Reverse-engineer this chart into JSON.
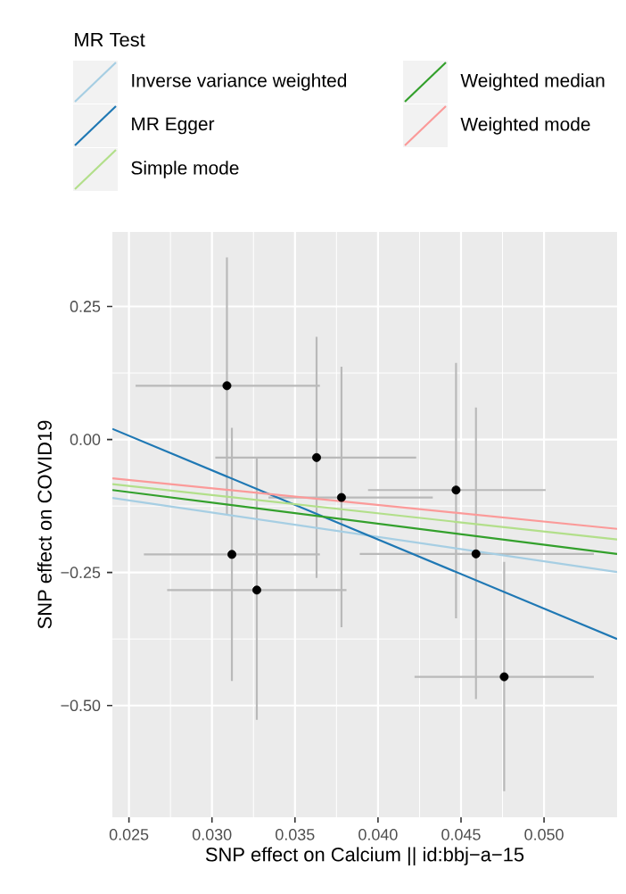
{
  "chart_data": {
    "type": "scatter",
    "xlabel": "SNP effect on Calcium || id:bbj−a−15",
    "ylabel": "SNP effect on COVID19",
    "legend_title": "MR Test",
    "legend": "top",
    "grid": true,
    "xlim": [
      0.024,
      0.0544
    ],
    "ylim": [
      -0.71,
      0.39
    ],
    "xticks": [
      0.025,
      {
        "value": 0.03,
        "label": "0.030"
      },
      0.035,
      {
        "value": 0.04,
        "label": "0.040"
      },
      0.045,
      {
        "value": 0.05,
        "label": "0.050"
      }
    ],
    "yticks": [
      {
        "value": -0.5,
        "label": "−0.50"
      },
      {
        "value": -0.25,
        "label": "−0.25"
      },
      {
        "value": 0,
        "label": "0.00"
      },
      {
        "value": 0.25,
        "label": "0.25"
      }
    ],
    "series": [
      {
        "marker": "circle",
        "color": "#000000",
        "x": [
          0.0309,
          0.0312,
          0.0327,
          0.0363,
          0.0378,
          0.0447,
          0.0459,
          0.0476
        ],
        "values": [
          0.101,
          -0.216,
          -0.283,
          -0.034,
          -0.109,
          -0.095,
          -0.215,
          -0.446
        ],
        "xerrors": [
          [
            0.0254,
            0.0365
          ],
          [
            0.0259,
            0.0365
          ],
          [
            0.0273,
            0.0381
          ],
          [
            0.0302,
            0.0423
          ],
          [
            0.0334,
            0.0433
          ],
          [
            0.0394,
            0.0501
          ],
          [
            0.0389,
            0.053
          ],
          [
            0.0422,
            0.053
          ]
        ],
        "errors": [
          [
            -0.14,
            0.342
          ],
          [
            -0.454,
            0.022
          ],
          [
            -0.527,
            -0.036
          ],
          [
            -0.26,
            0.193
          ],
          [
            -0.353,
            0.137
          ],
          [
            -0.336,
            0.144
          ],
          [
            -0.488,
            0.06
          ],
          [
            -0.661,
            -0.23
          ]
        ]
      },
      {
        "type": "line",
        "name": "Inverse variance weighted",
        "color": "#a6cee3",
        "x": [
          0.024,
          0.0544
        ],
        "values": [
          -0.11,
          -0.249
        ]
      },
      {
        "type": "line",
        "name": "MR Egger",
        "color": "#1f78b4",
        "x": [
          0.024,
          0.0544
        ],
        "values": [
          0.02,
          -0.375
        ]
      },
      {
        "type": "line",
        "name": "Simple mode",
        "color": "#b2df8a",
        "x": [
          0.024,
          0.0544
        ],
        "values": [
          -0.084,
          -0.188
        ]
      },
      {
        "type": "line",
        "name": "Weighted median",
        "color": "#33a02c",
        "x": [
          0.024,
          0.0544
        ],
        "values": [
          -0.095,
          -0.215
        ]
      },
      {
        "type": "line",
        "name": "Weighted mode",
        "color": "#fb9a99",
        "x": [
          0.024,
          0.0544
        ],
        "values": [
          -0.073,
          -0.168
        ]
      }
    ]
  }
}
